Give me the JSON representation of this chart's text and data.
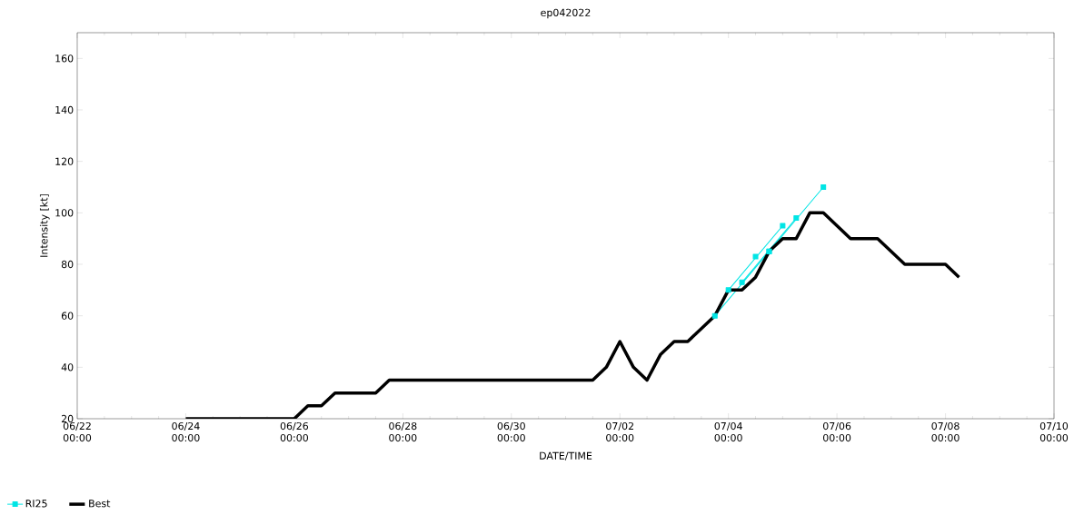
{
  "chart_data": {
    "type": "line",
    "title": "ep042022",
    "xlabel": "DATE/TIME",
    "ylabel": "Intensity [kt]",
    "xlim": [
      "2022-06-22T00:00",
      "2022-07-10T00:00"
    ],
    "ylim": [
      20,
      170
    ],
    "xticks": [
      {
        "value": "2022-06-22T00:00",
        "label": "06/22 00:00"
      },
      {
        "value": "2022-06-24T00:00",
        "label": "06/24 00:00"
      },
      {
        "value": "2022-06-26T00:00",
        "label": "06/26 00:00"
      },
      {
        "value": "2022-06-28T00:00",
        "label": "06/28 00:00"
      },
      {
        "value": "2022-06-30T00:00",
        "label": "06/30 00:00"
      },
      {
        "value": "2022-07-02T00:00",
        "label": "07/02 00:00"
      },
      {
        "value": "2022-07-04T00:00",
        "label": "07/04 00:00"
      },
      {
        "value": "2022-07-06T00:00",
        "label": "07/06 00:00"
      },
      {
        "value": "2022-07-08T00:00",
        "label": "07/08 00:00"
      },
      {
        "value": "2022-07-10T00:00",
        "label": "07/10 00:00"
      }
    ],
    "yticks": [
      20,
      40,
      60,
      80,
      100,
      120,
      140,
      160
    ],
    "legend": "bottom left",
    "grid": false,
    "series": [
      {
        "name": "RI25",
        "color": "#00e5e5",
        "marker": "square",
        "x": [
          "2022-07-03T18:00",
          "2022-07-04T18:00"
        ],
        "values": [
          60,
          85
        ]
      },
      {
        "color": "#00e5e5",
        "marker": "square",
        "x": [
          "2022-07-04T00:00",
          "2022-07-05T00:00"
        ],
        "values": [
          70,
          95
        ]
      },
      {
        "color": "#00e5e5",
        "marker": "square",
        "x": [
          "2022-07-04T06:00",
          "2022-07-05T06:00"
        ],
        "values": [
          73,
          98
        ]
      },
      {
        "color": "#00e5e5",
        "marker": "square",
        "x": [
          "2022-07-04T12:00"
        ],
        "values": [
          83
        ]
      },
      {
        "color": "#00e5e5",
        "marker": "square",
        "x": [
          "2022-07-04T18:00",
          "2022-07-05T18:00"
        ],
        "values": [
          85,
          110
        ]
      },
      {
        "name": "Best",
        "color": "#000000",
        "marker": "none",
        "x": [
          "2022-06-24T00:00",
          "2022-06-24T06:00",
          "2022-06-24T12:00",
          "2022-06-24T18:00",
          "2022-06-25T00:00",
          "2022-06-25T06:00",
          "2022-06-25T12:00",
          "2022-06-25T18:00",
          "2022-06-26T00:00",
          "2022-06-26T06:00",
          "2022-06-26T12:00",
          "2022-06-26T18:00",
          "2022-06-27T00:00",
          "2022-06-27T06:00",
          "2022-06-27T12:00",
          "2022-06-27T18:00",
          "2022-06-28T00:00",
          "2022-06-29T00:00",
          "2022-06-30T00:00",
          "2022-07-01T00:00",
          "2022-07-01T12:00",
          "2022-07-01T18:00",
          "2022-07-02T00:00",
          "2022-07-02T06:00",
          "2022-07-02T12:00",
          "2022-07-02T18:00",
          "2022-07-03T00:00",
          "2022-07-03T06:00",
          "2022-07-03T12:00",
          "2022-07-03T18:00",
          "2022-07-04T00:00",
          "2022-07-04T06:00",
          "2022-07-04T12:00",
          "2022-07-04T18:00",
          "2022-07-05T00:00",
          "2022-07-05T06:00",
          "2022-07-05T12:00",
          "2022-07-05T18:00",
          "2022-07-06T00:00",
          "2022-07-06T06:00",
          "2022-07-06T12:00",
          "2022-07-06T18:00",
          "2022-07-07T00:00",
          "2022-07-07T06:00",
          "2022-07-07T12:00",
          "2022-07-07T18:00",
          "2022-07-08T00:00",
          "2022-07-08T06:00"
        ],
        "values": [
          20,
          20,
          20,
          20,
          20,
          20,
          20,
          20,
          20,
          25,
          25,
          30,
          30,
          30,
          30,
          35,
          35,
          35,
          35,
          35,
          35,
          40,
          50,
          40,
          35,
          45,
          50,
          50,
          55,
          60,
          70,
          70,
          75,
          85,
          90,
          90,
          100,
          100,
          95,
          90,
          90,
          90,
          85,
          80,
          80,
          80,
          80,
          75
        ]
      }
    ]
  }
}
